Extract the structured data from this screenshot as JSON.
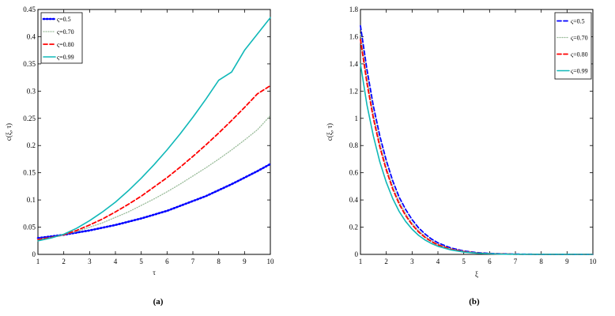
{
  "chart_data": [
    {
      "type": "line",
      "panel_label": "(a)",
      "xlabel": "τ",
      "ylabel": "c(ξ, τ)",
      "xlim": [
        1,
        10
      ],
      "ylim": [
        0,
        0.45
      ],
      "xticks": [
        "1",
        "2",
        "3",
        "4",
        "5",
        "6",
        "7",
        "8",
        "9",
        "10"
      ],
      "yticks": [
        "0",
        "0.05",
        "0.1",
        "0.15",
        "0.2",
        "0.25",
        "0.3",
        "0.35",
        "0.4",
        "0.45"
      ],
      "legend_position": "top-left",
      "x": [
        1,
        1.5,
        2,
        2.5,
        3,
        3.5,
        4,
        4.5,
        5,
        5.5,
        6,
        6.5,
        7,
        7.5,
        8,
        8.5,
        9,
        9.5,
        10
      ],
      "series": [
        {
          "name": "ς=0.5",
          "color": "#0000ff",
          "style": "dotted-heavy",
          "values": [
            0.03,
            0.033,
            0.036,
            0.04,
            0.044,
            0.049,
            0.054,
            0.06,
            0.066,
            0.073,
            0.08,
            0.089,
            0.098,
            0.107,
            0.118,
            0.129,
            0.141,
            0.153,
            0.166
          ]
        },
        {
          "name": "ς=0.70",
          "color": "#99bb99",
          "style": "dotted",
          "values": [
            0.028,
            0.031,
            0.036,
            0.042,
            0.05,
            0.058,
            0.068,
            0.078,
            0.09,
            0.102,
            0.115,
            0.129,
            0.144,
            0.159,
            0.175,
            0.192,
            0.21,
            0.229,
            0.255
          ]
        },
        {
          "name": "ς=0.80",
          "color": "#ff0000",
          "style": "dashed",
          "values": [
            0.027,
            0.031,
            0.036,
            0.044,
            0.054,
            0.065,
            0.078,
            0.092,
            0.107,
            0.124,
            0.141,
            0.16,
            0.18,
            0.201,
            0.223,
            0.246,
            0.27,
            0.295,
            0.31
          ]
        },
        {
          "name": "ς=0.99",
          "color": "#10b8b8",
          "style": "solid",
          "values": [
            0.025,
            0.03,
            0.037,
            0.048,
            0.062,
            0.078,
            0.096,
            0.117,
            0.14,
            0.165,
            0.192,
            0.221,
            0.252,
            0.285,
            0.32,
            0.335,
            0.375,
            0.405,
            0.435
          ]
        }
      ]
    },
    {
      "type": "line",
      "panel_label": "(b)",
      "xlabel": "ξ",
      "ylabel": "c(ξ, τ)",
      "xlim": [
        1,
        10
      ],
      "ylim": [
        0,
        1.8
      ],
      "xticks": [
        "1",
        "2",
        "3",
        "4",
        "5",
        "6",
        "7",
        "8",
        "9",
        "10"
      ],
      "yticks": [
        "0",
        "0.2",
        "0.4",
        "0.6",
        "0.8",
        "1",
        "1.2",
        "1.4",
        "1.6",
        "1.8"
      ],
      "legend_position": "top-right",
      "x": [
        1,
        1.25,
        1.5,
        1.75,
        2,
        2.25,
        2.5,
        2.75,
        3,
        3.25,
        3.5,
        3.75,
        4,
        4.5,
        5,
        5.5,
        6,
        6.5,
        7,
        8,
        9,
        10
      ],
      "series": [
        {
          "name": "ς=0.5",
          "color": "#0000ff",
          "style": "dashed",
          "values": [
            1.68,
            1.36,
            1.09,
            0.87,
            0.69,
            0.54,
            0.42,
            0.33,
            0.255,
            0.195,
            0.15,
            0.113,
            0.085,
            0.047,
            0.025,
            0.013,
            0.007,
            0.004,
            0.002,
            0.0005,
            0.0001,
            0.0
          ]
        },
        {
          "name": "ς=0.70",
          "color": "#99bb99",
          "style": "dotted",
          "values": [
            1.62,
            1.3,
            1.03,
            0.82,
            0.64,
            0.5,
            0.39,
            0.3,
            0.23,
            0.175,
            0.133,
            0.1,
            0.075,
            0.041,
            0.022,
            0.011,
            0.006,
            0.003,
            0.002,
            0.0004,
            0.0001,
            0.0
          ]
        },
        {
          "name": "ς=0.80",
          "color": "#ff0000",
          "style": "dashed",
          "values": [
            1.58,
            1.26,
            1.0,
            0.79,
            0.62,
            0.48,
            0.37,
            0.285,
            0.218,
            0.165,
            0.125,
            0.094,
            0.07,
            0.038,
            0.02,
            0.01,
            0.005,
            0.003,
            0.001,
            0.0003,
            0.0001,
            0.0
          ]
        },
        {
          "name": "ς=0.99",
          "color": "#10b8b8",
          "style": "solid",
          "values": [
            1.4,
            1.1,
            0.87,
            0.68,
            0.53,
            0.41,
            0.315,
            0.242,
            0.185,
            0.14,
            0.106,
            0.08,
            0.06,
            0.033,
            0.017,
            0.009,
            0.005,
            0.002,
            0.001,
            0.0003,
            0.0001,
            0.0
          ]
        }
      ]
    }
  ]
}
